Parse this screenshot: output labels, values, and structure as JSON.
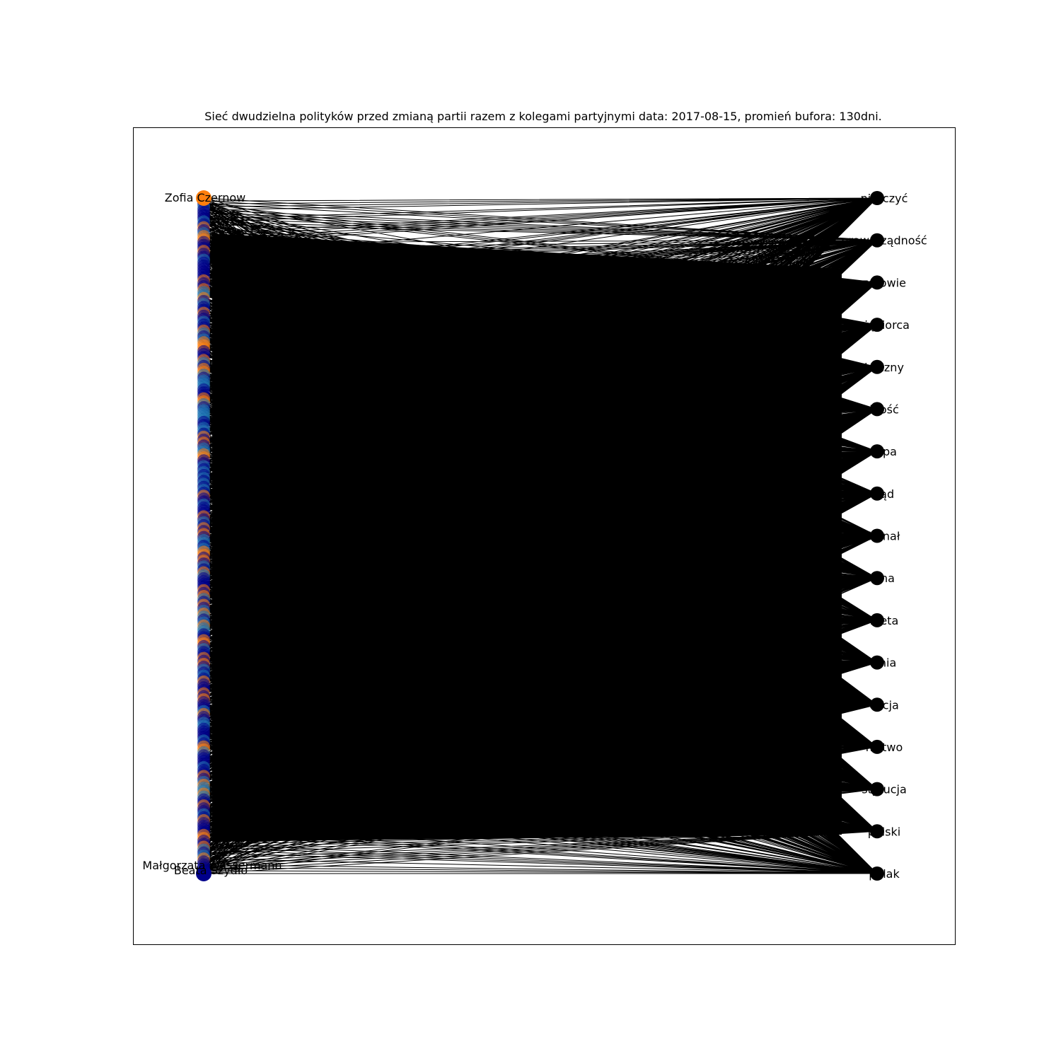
{
  "title": "Sieć dwudzielna polityków  przed zmianą partii razem z kolegami partyjnymi data: 2017-08-15, promień bufora: 130dni.",
  "colors": {
    "party_a": "#ff7f0e",
    "party_b": "#00008b",
    "party_c": "#1f77b4",
    "edge": "#000000"
  },
  "visible_politician_labels": [
    "Zofia Czernow",
    "Beata Szydło",
    "Małgorzata Wassermann"
  ],
  "right_nodes": [
    "niszczyć",
    "praworządność",
    "zdrowie",
    "przedsiębiorca",
    "publiczny",
    "wolność",
    "europa",
    "sąd",
    "trybunał",
    "cena",
    "kobieta",
    "unia",
    "policja",
    "szkolnictwo",
    "konstytucja",
    "polski",
    "polak"
  ],
  "right_label_shown": [
    "niszczyć",
    "praworządność",
    "zdrowie",
    "siębiorca",
    "bliczny",
    "lność",
    "ropa",
    "sąd",
    "bunał",
    "ena",
    "bieta",
    "unia",
    "olicja",
    "nictwo",
    "stytucja",
    "polski",
    "polak"
  ]
}
